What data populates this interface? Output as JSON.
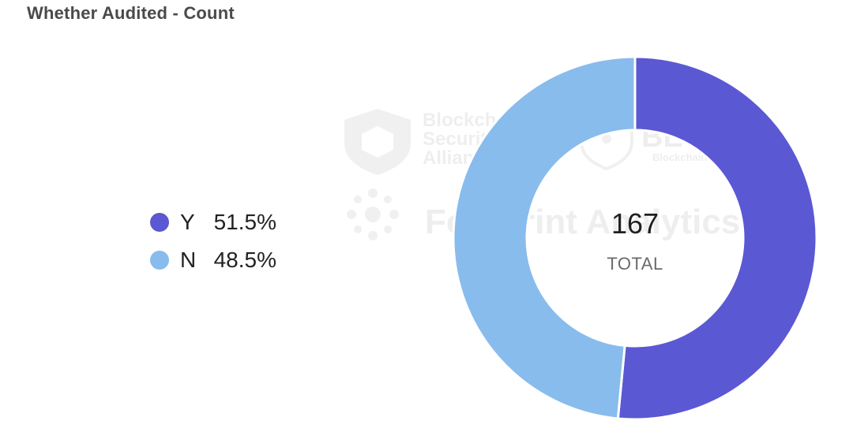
{
  "chart_data": {
    "type": "pie",
    "title": "Whether Audited - Count",
    "categories": [
      "Y",
      "N"
    ],
    "values": [
      51.5,
      48.5
    ],
    "labels": [
      "51.5%",
      "48.5%"
    ],
    "colors": [
      "#5b58d3",
      "#88bcec"
    ],
    "total": "167",
    "total_label": "TOTAL",
    "legend_position": "left"
  },
  "watermarks": {
    "bsa_line1": "Blockchain",
    "bsa_line2": "Security",
    "bsa_line3": "Alliance",
    "beosin": "BEOSIN",
    "beosin_sub": "Blockchain Security",
    "footprint": "Footprint Analytics"
  }
}
